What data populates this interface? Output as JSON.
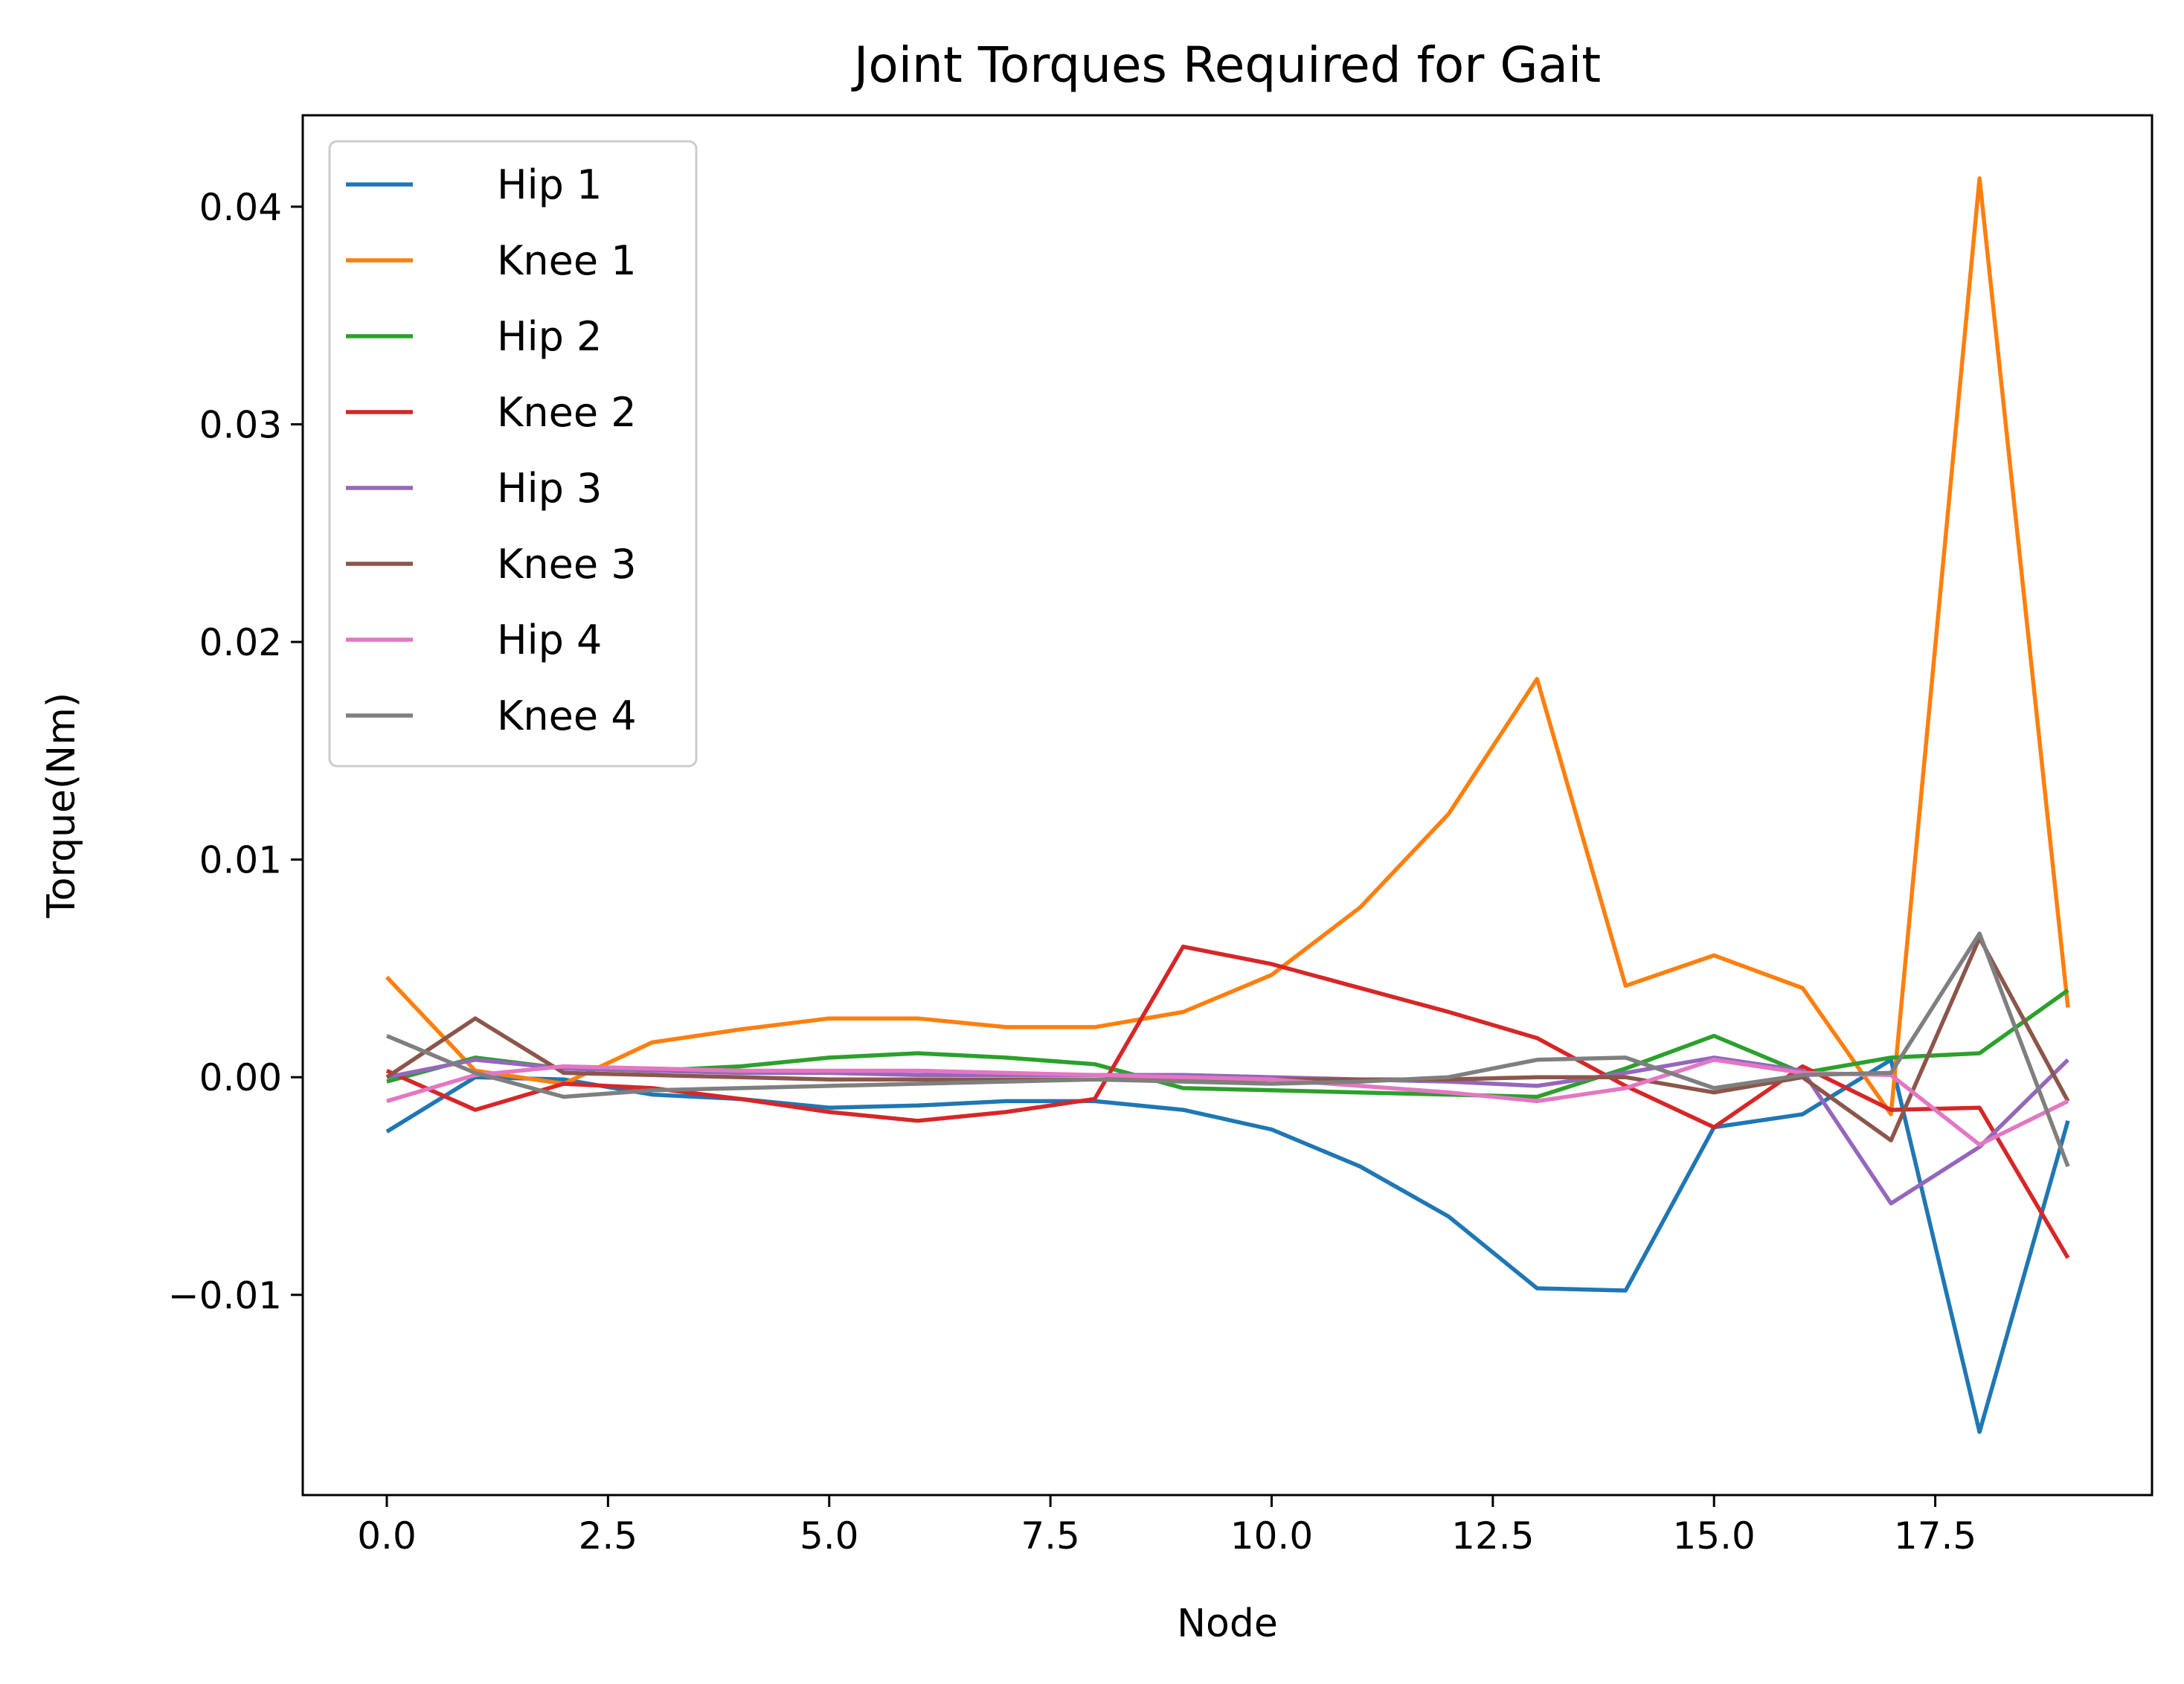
{
  "chart_data": {
    "type": "line",
    "title": "Joint Torques Required for Gait",
    "xlabel": "Node",
    "ylabel": "Torque(Nm)",
    "xlim": [
      -0.95,
      19.95
    ],
    "ylim": [
      -0.0192,
      0.0442
    ],
    "x": [
      0,
      1,
      2,
      3,
      4,
      5,
      6,
      7,
      8,
      9,
      10,
      11,
      12,
      13,
      14,
      15,
      16,
      17,
      18,
      19
    ],
    "xticks": [
      0.0,
      2.5,
      5.0,
      7.5,
      10.0,
      12.5,
      15.0,
      17.5
    ],
    "xtick_labels": [
      "0.0",
      "2.5",
      "5.0",
      "7.5",
      "10.0",
      "12.5",
      "15.0",
      "17.5"
    ],
    "yticks": [
      -0.01,
      0.0,
      0.01,
      0.02,
      0.03,
      0.04
    ],
    "ytick_labels": [
      "−0.01",
      "0.00",
      "0.01",
      "0.02",
      "0.03",
      "0.04"
    ],
    "grid": false,
    "legend_position": "top-left",
    "series": [
      {
        "name": "Hip 1",
        "color": "#1f77b4",
        "values": [
          -0.0025,
          0.0,
          -0.0001,
          -0.0008,
          -0.001,
          -0.0014,
          -0.0013,
          -0.0011,
          -0.0011,
          -0.0015,
          -0.0024,
          -0.0041,
          -0.0064,
          -0.0097,
          -0.0098,
          -0.0023,
          -0.0017,
          0.0008,
          -0.0163,
          -0.002
        ]
      },
      {
        "name": "Knee 1",
        "color": "#ff7f0e",
        "values": [
          0.0046,
          0.0003,
          -0.0003,
          0.0016,
          0.0022,
          0.0027,
          0.0027,
          0.0023,
          0.0023,
          0.003,
          0.0047,
          0.0078,
          0.0121,
          0.0183,
          0.0042,
          0.0056,
          0.0041,
          -0.0017,
          0.0413,
          0.0032
        ]
      },
      {
        "name": "Hip 2",
        "color": "#2ca02c",
        "values": [
          -0.0002,
          0.0009,
          0.0004,
          0.0003,
          0.0005,
          0.0009,
          0.0011,
          0.0009,
          0.0006,
          -0.0005,
          -0.0006,
          -0.0007,
          -0.0008,
          -0.0009,
          0.0004,
          0.0019,
          0.0002,
          0.0009,
          0.0011,
          0.004
        ]
      },
      {
        "name": "Knee 2",
        "color": "#d62728",
        "values": [
          0.0003,
          -0.0015,
          -0.0003,
          -0.0005,
          -0.001,
          -0.0016,
          -0.002,
          -0.0016,
          -0.001,
          0.006,
          0.0052,
          0.0041,
          0.003,
          0.0018,
          -0.0004,
          -0.0023,
          0.0005,
          -0.0015,
          -0.0014,
          -0.0083
        ]
      },
      {
        "name": "Hip 3",
        "color": "#9467bd",
        "values": [
          0.0,
          0.0008,
          0.0004,
          0.0003,
          0.0002,
          0.0002,
          0.0001,
          0.0001,
          0.0001,
          0.0001,
          0.0,
          -0.0001,
          -0.0002,
          -0.0004,
          0.0002,
          0.0009,
          0.0003,
          -0.0058,
          -0.0032,
          0.0008
        ]
      },
      {
        "name": "Knee 3",
        "color": "#8c564b",
        "values": [
          0.0,
          0.0027,
          0.0002,
          0.0001,
          0.0,
          -0.0001,
          -0.0001,
          -0.0001,
          -0.0001,
          -0.0001,
          -0.0001,
          -0.0001,
          -0.0001,
          0.0,
          0.0,
          -0.0007,
          0.0,
          -0.0029,
          0.0064,
          -0.0011
        ]
      },
      {
        "name": "Hip 4",
        "color": "#e377c2",
        "values": [
          -0.0011,
          0.0001,
          0.0005,
          0.0004,
          0.0003,
          0.0003,
          0.0003,
          0.0002,
          0.0001,
          0.0,
          -0.0001,
          -0.0004,
          -0.0007,
          -0.0011,
          -0.0005,
          0.0008,
          0.0002,
          0.0001,
          -0.0031,
          -0.0011
        ]
      },
      {
        "name": "Knee 4",
        "color": "#7f7f7f",
        "values": [
          0.0019,
          0.0002,
          -0.0009,
          -0.0006,
          -0.0005,
          -0.0004,
          -0.0003,
          -0.0002,
          -0.0001,
          -0.0002,
          -0.0003,
          -0.0002,
          0.0,
          0.0008,
          0.0009,
          -0.0005,
          0.0001,
          0.0002,
          0.0066,
          -0.0041
        ]
      }
    ]
  }
}
